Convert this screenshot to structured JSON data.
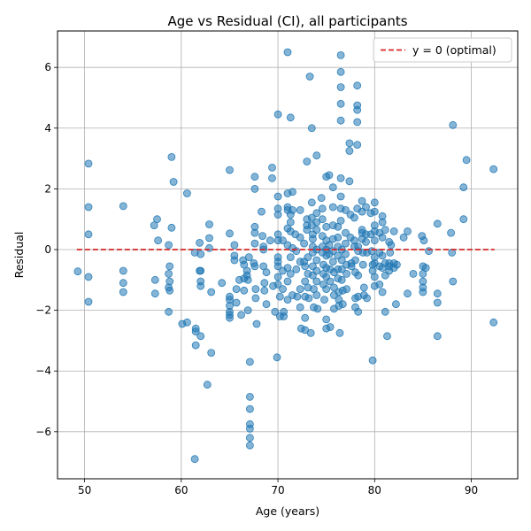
{
  "chart_data": {
    "type": "scatter",
    "title": "Age vs Residual (CI), all participants",
    "xlabel": "Age (years)",
    "ylabel": "Residual",
    "xlim": [
      47.2,
      94.8
    ],
    "ylim": [
      -7.55,
      7.2
    ],
    "xticks": [
      50,
      60,
      70,
      80,
      90
    ],
    "yticks": [
      -6,
      -4,
      -2,
      0,
      2,
      4,
      6
    ],
    "grid": true,
    "legend": {
      "position": "top-right",
      "entries": [
        {
          "label": "y = 0 (optimal)",
          "style": "dashed",
          "color": "#d62728"
        }
      ]
    },
    "reference_line": {
      "y": 0,
      "x_range": [
        49.2,
        92.4
      ],
      "label": "y = 0 (optimal)"
    },
    "point_color": "#1f77b4",
    "points": [
      [
        49.3,
        -0.72
      ],
      [
        50.4,
        2.83
      ],
      [
        50.4,
        1.4
      ],
      [
        50.4,
        0.5
      ],
      [
        50.4,
        -0.9
      ],
      [
        50.4,
        -1.72
      ],
      [
        54.0,
        1.43
      ],
      [
        54.0,
        -0.7
      ],
      [
        54.0,
        -1.1
      ],
      [
        54.0,
        -1.4
      ],
      [
        57.2,
        0.8
      ],
      [
        57.5,
        1.0
      ],
      [
        57.6,
        0.3
      ],
      [
        57.3,
        -1.0
      ],
      [
        57.3,
        -1.45
      ],
      [
        58.7,
        0.15
      ],
      [
        58.8,
        -0.55
      ],
      [
        58.7,
        -0.8
      ],
      [
        58.8,
        -1.05
      ],
      [
        58.7,
        -1.25
      ],
      [
        58.8,
        -1.35
      ],
      [
        58.7,
        -2.05
      ],
      [
        59.0,
        3.05
      ],
      [
        59.2,
        2.23
      ],
      [
        59.0,
        0.72
      ],
      [
        60.1,
        -2.45
      ],
      [
        60.6,
        -2.4
      ],
      [
        60.6,
        1.85
      ],
      [
        61.4,
        -0.1
      ],
      [
        61.5,
        -2.6
      ],
      [
        61.5,
        -2.7
      ],
      [
        61.5,
        -3.15
      ],
      [
        61.4,
        -6.9
      ],
      [
        61.9,
        0.22
      ],
      [
        61.9,
        -0.7
      ],
      [
        62.0,
        -0.7
      ],
      [
        62.0,
        -1.05
      ],
      [
        62.0,
        -1.2
      ],
      [
        62.0,
        -0.15
      ],
      [
        62.0,
        -2.85
      ],
      [
        62.7,
        -4.45
      ],
      [
        62.9,
        0.83
      ],
      [
        62.9,
        0.38
      ],
      [
        62.9,
        0.05
      ],
      [
        63.1,
        -1.4
      ],
      [
        63.1,
        -3.4
      ],
      [
        64.2,
        -1.1
      ],
      [
        65.0,
        2.62
      ],
      [
        65.0,
        0.53
      ],
      [
        65.0,
        -1.55
      ],
      [
        65.0,
        -1.65
      ],
      [
        65.0,
        -1.85
      ],
      [
        65.0,
        -2.05
      ],
      [
        65.0,
        -2.15
      ],
      [
        65.0,
        -2.25
      ],
      [
        65.5,
        0.15
      ],
      [
        65.5,
        -0.2
      ],
      [
        65.5,
        -0.35
      ],
      [
        65.7,
        -1.3
      ],
      [
        65.7,
        -1.75
      ],
      [
        66.0,
        -1.0
      ],
      [
        66.2,
        -2.15
      ],
      [
        66.4,
        -0.35
      ],
      [
        66.5,
        -0.95
      ],
      [
        66.5,
        -0.5
      ],
      [
        66.5,
        -1.35
      ],
      [
        66.8,
        -0.7
      ],
      [
        66.8,
        -0.85
      ],
      [
        66.9,
        -1.0
      ],
      [
        66.9,
        -2.0
      ],
      [
        67.0,
        -0.25
      ],
      [
        67.1,
        -3.7
      ],
      [
        67.1,
        -4.85
      ],
      [
        67.1,
        -5.25
      ],
      [
        67.1,
        -5.75
      ],
      [
        67.1,
        -5.9
      ],
      [
        67.1,
        -6.2
      ],
      [
        67.1,
        -6.45
      ],
      [
        67.5,
        -0.45
      ],
      [
        67.6,
        -0.55
      ],
      [
        67.6,
        0.75
      ],
      [
        67.6,
        0.55
      ],
      [
        67.6,
        2.4
      ],
      [
        67.6,
        2.0
      ],
      [
        67.6,
        0.2
      ],
      [
        67.7,
        -1.3
      ],
      [
        67.7,
        -1.6
      ],
      [
        67.8,
        -2.45
      ],
      [
        68.3,
        1.25
      ],
      [
        68.4,
        0.45
      ],
      [
        68.5,
        0.1
      ],
      [
        68.5,
        0.0
      ],
      [
        68.5,
        -0.55
      ],
      [
        68.6,
        -1.1
      ],
      [
        68.6,
        -1.35
      ],
      [
        68.8,
        -1.8
      ],
      [
        68.8,
        -0.75
      ],
      [
        69.2,
        0.3
      ],
      [
        69.4,
        2.7
      ],
      [
        69.4,
        2.35
      ],
      [
        69.5,
        -1.2
      ],
      [
        69.7,
        -2.05
      ],
      [
        69.9,
        -3.55
      ],
      [
        70.0,
        4.45
      ],
      [
        70.0,
        1.75
      ],
      [
        70.0,
        1.35
      ],
      [
        70.0,
        1.15
      ],
      [
        70.0,
        0.5
      ],
      [
        70.0,
        0.3
      ],
      [
        70.0,
        -0.25
      ],
      [
        70.0,
        -0.4
      ],
      [
        70.0,
        -0.55
      ],
      [
        70.0,
        -0.9
      ],
      [
        70.0,
        -1.15
      ],
      [
        70.2,
        -1.55
      ],
      [
        70.2,
        -2.2
      ],
      [
        70.5,
        0.3
      ],
      [
        70.5,
        -0.7
      ],
      [
        70.5,
        -1.3
      ],
      [
        70.6,
        -2.05
      ],
      [
        70.6,
        -2.2
      ],
      [
        71.0,
        6.5
      ],
      [
        71.0,
        1.85
      ],
      [
        71.0,
        1.4
      ],
      [
        71.0,
        1.3
      ],
      [
        71.0,
        0.7
      ],
      [
        71.0,
        0.15
      ],
      [
        71.0,
        -0.6
      ],
      [
        71.0,
        -1.05
      ],
      [
        71.0,
        -1.65
      ],
      [
        71.3,
        4.35
      ],
      [
        71.3,
        1.15
      ],
      [
        71.3,
        0.9
      ],
      [
        71.3,
        0.6
      ],
      [
        71.3,
        -0.25
      ],
      [
        71.3,
        -0.8
      ],
      [
        71.5,
        1.9
      ],
      [
        71.5,
        1.3
      ],
      [
        71.5,
        0.05
      ],
      [
        71.5,
        -1.5
      ],
      [
        71.8,
        0.5
      ],
      [
        71.9,
        -0.05
      ],
      [
        71.9,
        -0.65
      ],
      [
        72.0,
        -1.55
      ],
      [
        72.3,
        1.3
      ],
      [
        72.3,
        0.4
      ],
      [
        72.3,
        -0.4
      ],
      [
        72.3,
        -1.3
      ],
      [
        72.3,
        -1.9
      ],
      [
        72.4,
        -2.6
      ],
      [
        72.7,
        0.2
      ],
      [
        72.7,
        -0.4
      ],
      [
        72.8,
        -0.55
      ],
      [
        72.8,
        -1.05
      ],
      [
        72.8,
        -1.55
      ],
      [
        72.8,
        -2.25
      ],
      [
        72.8,
        -2.65
      ],
      [
        73.0,
        2.9
      ],
      [
        73.0,
        1.0
      ],
      [
        73.0,
        0.8
      ],
      [
        73.0,
        0.65
      ],
      [
        73.1,
        -0.25
      ],
      [
        73.1,
        -0.8
      ],
      [
        73.1,
        -1.25
      ],
      [
        73.2,
        -1.6
      ],
      [
        73.4,
        -2.75
      ],
      [
        73.3,
        5.7
      ],
      [
        73.5,
        4.0
      ],
      [
        73.5,
        1.55
      ],
      [
        73.5,
        1.05
      ],
      [
        73.5,
        0.8
      ],
      [
        73.6,
        0.5
      ],
      [
        73.6,
        0.35
      ],
      [
        73.6,
        0.1
      ],
      [
        73.6,
        -0.1
      ],
      [
        73.6,
        -0.55
      ],
      [
        73.6,
        -0.85
      ],
      [
        73.7,
        -1.3
      ],
      [
        73.7,
        -1.9
      ],
      [
        74.0,
        3.1
      ],
      [
        74.0,
        1.2
      ],
      [
        74.0,
        0.9
      ],
      [
        74.0,
        0.65
      ],
      [
        74.0,
        0.0
      ],
      [
        74.0,
        -0.35
      ],
      [
        74.0,
        -0.7
      ],
      [
        74.0,
        -1.05
      ],
      [
        74.0,
        -1.5
      ],
      [
        74.1,
        -1.95
      ],
      [
        74.5,
        1.7
      ],
      [
        74.6,
        1.35
      ],
      [
        74.6,
        1.0
      ],
      [
        74.6,
        0.45
      ],
      [
        74.6,
        0.1
      ],
      [
        74.6,
        -0.1
      ],
      [
        74.7,
        -0.5
      ],
      [
        74.7,
        -0.8
      ],
      [
        74.7,
        -1.15
      ],
      [
        74.8,
        -1.65
      ],
      [
        75.0,
        2.4
      ],
      [
        75.0,
        0.75
      ],
      [
        75.0,
        0.3
      ],
      [
        75.0,
        0.0
      ],
      [
        75.0,
        -0.2
      ],
      [
        75.0,
        -0.6
      ],
      [
        75.0,
        -0.9
      ],
      [
        75.0,
        -1.3
      ],
      [
        75.0,
        -2.3
      ],
      [
        75.0,
        -2.6
      ],
      [
        75.3,
        2.45
      ],
      [
        75.3,
        0.15
      ],
      [
        75.3,
        -0.15
      ],
      [
        75.4,
        -0.65
      ],
      [
        75.4,
        -1.05
      ],
      [
        75.4,
        -2.55
      ],
      [
        75.7,
        2.05
      ],
      [
        75.7,
        1.4
      ],
      [
        75.7,
        0.8
      ],
      [
        75.7,
        0.35
      ],
      [
        75.7,
        -0.05
      ],
      [
        75.7,
        -0.4
      ],
      [
        75.8,
        -0.75
      ],
      [
        75.8,
        -1.25
      ],
      [
        75.8,
        -1.5
      ],
      [
        75.8,
        -1.95
      ],
      [
        76.2,
        0.75
      ],
      [
        76.2,
        0.4
      ],
      [
        76.2,
        0.1
      ],
      [
        76.2,
        -0.2
      ],
      [
        76.2,
        -0.65
      ],
      [
        76.2,
        -0.95
      ],
      [
        76.3,
        -1.4
      ],
      [
        76.3,
        -1.65
      ],
      [
        76.3,
        -1.85
      ],
      [
        76.4,
        -2.75
      ],
      [
        76.5,
        6.4
      ],
      [
        76.5,
        5.85
      ],
      [
        76.5,
        5.35
      ],
      [
        76.5,
        4.8
      ],
      [
        76.5,
        4.25
      ],
      [
        76.5,
        2.35
      ],
      [
        76.5,
        1.75
      ],
      [
        76.5,
        1.35
      ],
      [
        76.5,
        0.95
      ],
      [
        76.6,
        0.0
      ],
      [
        76.6,
        -0.35
      ],
      [
        76.6,
        -0.65
      ],
      [
        76.6,
        -1.0
      ],
      [
        76.7,
        -1.35
      ],
      [
        76.7,
        -1.8
      ],
      [
        77.0,
        1.3
      ],
      [
        77.0,
        0.55
      ],
      [
        77.0,
        0.2
      ],
      [
        77.0,
        -0.15
      ],
      [
        77.1,
        -0.5
      ],
      [
        77.1,
        -0.8
      ],
      [
        77.1,
        -1.3
      ],
      [
        77.4,
        3.5
      ],
      [
        77.4,
        3.25
      ],
      [
        77.4,
        2.25
      ],
      [
        77.5,
        1.15
      ],
      [
        77.5,
        0.4
      ],
      [
        77.6,
        -0.45
      ],
      [
        77.6,
        -0.55
      ],
      [
        77.9,
        1.05
      ],
      [
        77.9,
        0.3
      ],
      [
        77.9,
        0.1
      ],
      [
        78.0,
        -0.35
      ],
      [
        78.0,
        -0.75
      ],
      [
        78.0,
        -1.6
      ],
      [
        78.0,
        -1.9
      ],
      [
        78.2,
        5.4
      ],
      [
        78.2,
        4.75
      ],
      [
        78.2,
        4.6
      ],
      [
        78.2,
        4.2
      ],
      [
        78.2,
        3.45
      ],
      [
        78.2,
        1.35
      ],
      [
        78.3,
        0.1
      ],
      [
        78.3,
        -0.05
      ],
      [
        78.3,
        -0.85
      ],
      [
        78.3,
        -1.55
      ],
      [
        78.3,
        -2.05
      ],
      [
        78.7,
        1.6
      ],
      [
        78.7,
        1.25
      ],
      [
        78.7,
        0.65
      ],
      [
        78.7,
        0.55
      ],
      [
        78.7,
        0.35
      ],
      [
        78.8,
        -0.1
      ],
      [
        78.8,
        -0.5
      ],
      [
        78.9,
        -1.25
      ],
      [
        78.9,
        -1.5
      ],
      [
        79.1,
        1.4
      ],
      [
        79.1,
        0.5
      ],
      [
        79.1,
        0.25
      ],
      [
        79.2,
        -0.1
      ],
      [
        79.2,
        -1.6
      ],
      [
        79.6,
        1.2
      ],
      [
        79.6,
        0.5
      ],
      [
        79.7,
        -0.05
      ],
      [
        79.8,
        -0.5
      ],
      [
        79.8,
        -0.7
      ],
      [
        79.8,
        -3.65
      ],
      [
        80.0,
        1.55
      ],
      [
        80.0,
        1.25
      ],
      [
        80.0,
        0.8
      ],
      [
        80.0,
        0.6
      ],
      [
        80.0,
        0.3
      ],
      [
        80.0,
        -0.25
      ],
      [
        80.0,
        -0.45
      ],
      [
        80.0,
        -0.9
      ],
      [
        80.0,
        -1.2
      ],
      [
        80.5,
        0.55
      ],
      [
        80.5,
        -0.1
      ],
      [
        80.5,
        -0.55
      ],
      [
        80.5,
        -1.15
      ],
      [
        80.8,
        1.1
      ],
      [
        80.8,
        0.9
      ],
      [
        80.8,
        0.4
      ],
      [
        80.8,
        -0.2
      ],
      [
        80.8,
        -0.6
      ],
      [
        80.8,
        -1.4
      ],
      [
        81.1,
        0.65
      ],
      [
        81.1,
        -0.45
      ],
      [
        81.1,
        -0.85
      ],
      [
        81.1,
        -2.05
      ],
      [
        81.3,
        -2.85
      ],
      [
        81.5,
        0.25
      ],
      [
        81.5,
        -0.45
      ],
      [
        81.5,
        -0.55
      ],
      [
        81.5,
        -0.7
      ],
      [
        81.6,
        -0.1
      ],
      [
        81.7,
        0.15
      ],
      [
        82.0,
        0.6
      ],
      [
        82.0,
        -0.45
      ],
      [
        82.0,
        -0.6
      ],
      [
        82.2,
        -1.8
      ],
      [
        82.3,
        -0.5
      ],
      [
        83.0,
        0.4
      ],
      [
        83.4,
        0.6
      ],
      [
        83.4,
        -1.45
      ],
      [
        84.0,
        -0.8
      ],
      [
        84.9,
        0.45
      ],
      [
        85.0,
        -0.55
      ],
      [
        85.0,
        -0.8
      ],
      [
        85.0,
        -1.05
      ],
      [
        85.0,
        -1.25
      ],
      [
        85.0,
        -1.4
      ],
      [
        85.1,
        0.3
      ],
      [
        85.3,
        -0.6
      ],
      [
        85.6,
        -0.05
      ],
      [
        86.5,
        0.85
      ],
      [
        86.5,
        -1.45
      ],
      [
        86.5,
        -1.75
      ],
      [
        86.5,
        -2.85
      ],
      [
        87.9,
        0.55
      ],
      [
        88.0,
        -0.1
      ],
      [
        88.1,
        4.1
      ],
      [
        88.1,
        -1.05
      ],
      [
        89.2,
        2.05
      ],
      [
        89.2,
        1.0
      ],
      [
        89.5,
        2.95
      ],
      [
        92.3,
        2.65
      ],
      [
        92.3,
        -2.4
      ]
    ]
  }
}
